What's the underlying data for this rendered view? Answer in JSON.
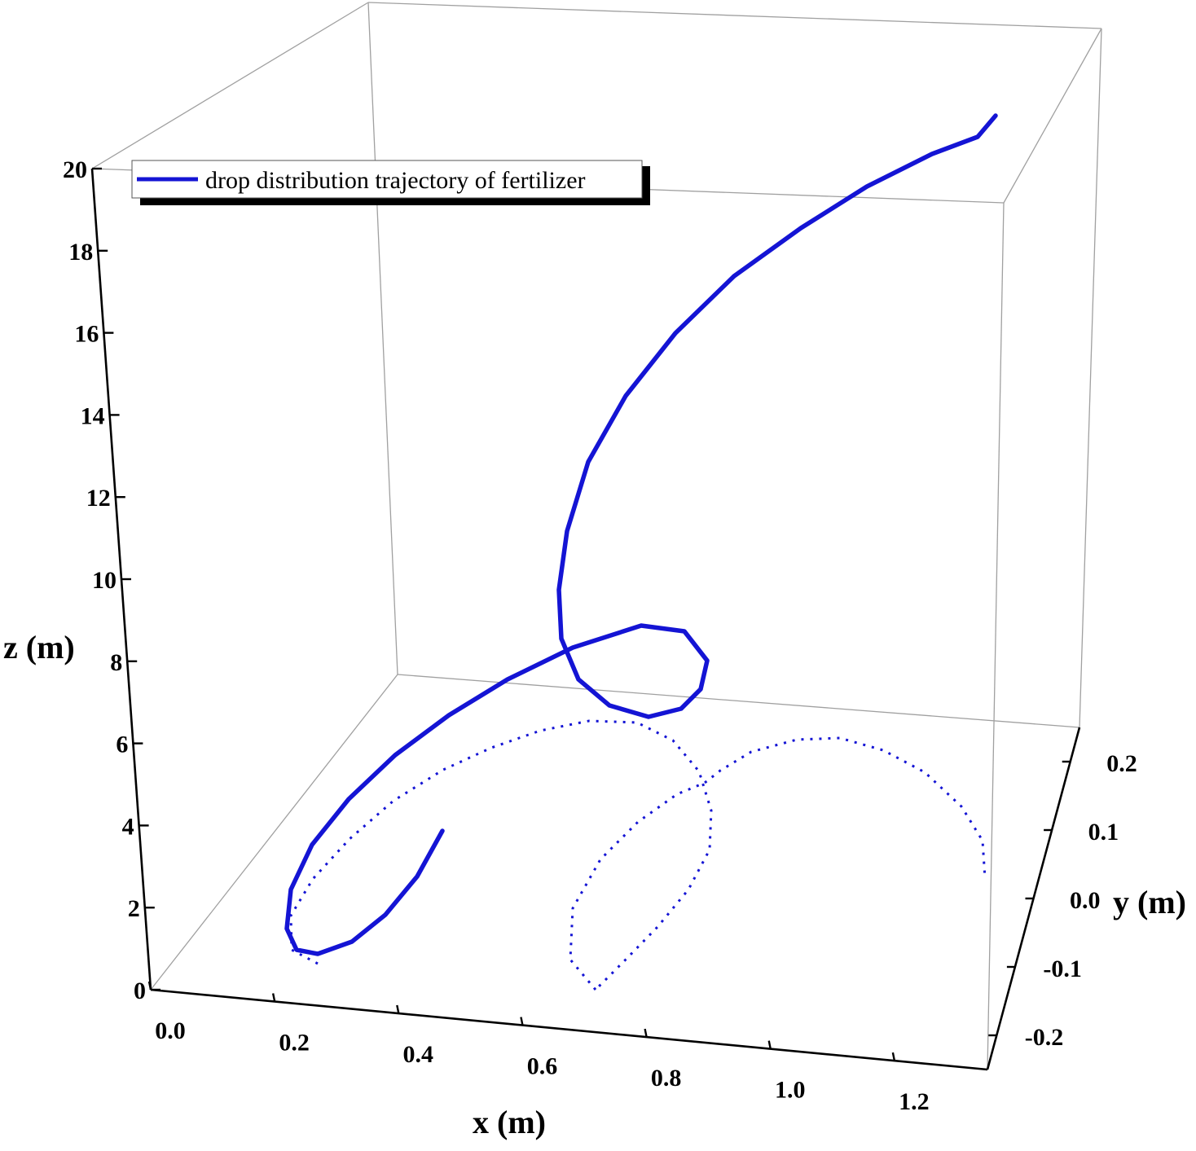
{
  "chart_data": {
    "type": "line3d",
    "x_axis": {
      "label": "x (m)",
      "ticks": [
        "0.0",
        "0.2",
        "0.4",
        "0.6",
        "0.8",
        "1.0",
        "1.2"
      ]
    },
    "y_axis": {
      "label": "y (m)",
      "ticks": [
        "-0.2",
        "-0.1",
        "0.0",
        "0.1",
        "0.2"
      ]
    },
    "z_axis": {
      "label": "z (m)",
      "ticks": [
        "0",
        "2",
        "4",
        "6",
        "8",
        "10",
        "12",
        "14",
        "16",
        "18",
        "20"
      ]
    },
    "xlim": [
      0,
      1.35
    ],
    "ylim": [
      -0.25,
      0.25
    ],
    "zlim": [
      0,
      20
    ],
    "legend": {
      "position": "top-left",
      "entries": [
        "drop distribution trajectory of fertilizer"
      ]
    },
    "series": [
      {
        "name": "drop distribution trajectory of fertilizer",
        "color": "#1414d4",
        "style": "solid",
        "description_note": "3D trajectory; dotted projection on the z=0 floor"
      }
    ]
  }
}
